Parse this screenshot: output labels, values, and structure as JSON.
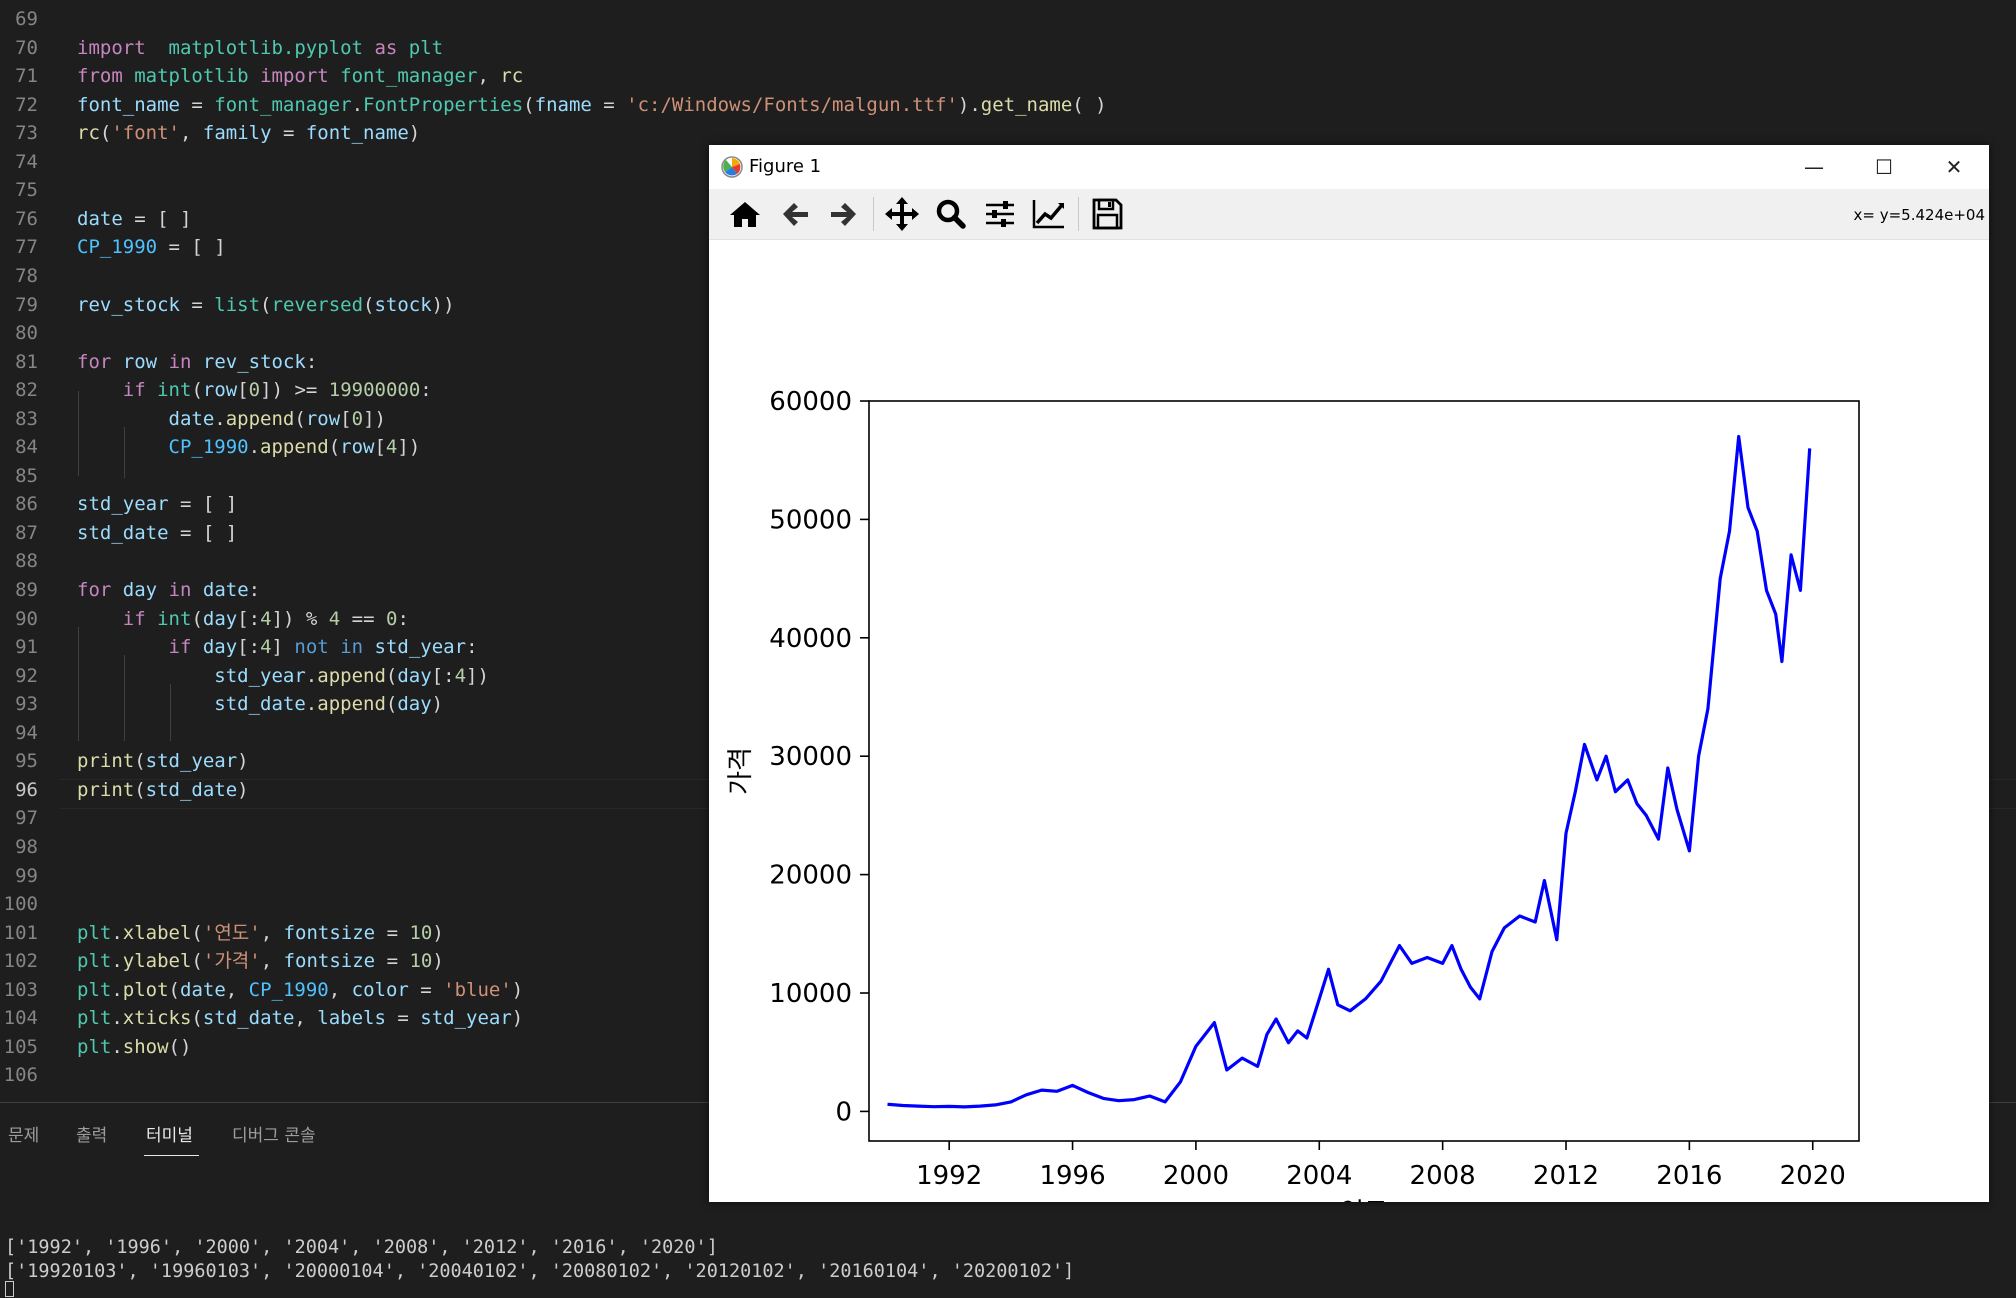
{
  "editor": {
    "active_line": "96",
    "lines": [
      {
        "n": "69",
        "tokens": []
      },
      {
        "n": "70",
        "tokens": [
          [
            "kw",
            "import"
          ],
          [
            "",
            "  "
          ],
          [
            "cls",
            "matplotlib.pyplot"
          ],
          [
            "",
            " "
          ],
          [
            "kw",
            "as"
          ],
          [
            "",
            " "
          ],
          [
            "cls",
            "plt"
          ]
        ]
      },
      {
        "n": "71",
        "tokens": [
          [
            "kw",
            "from"
          ],
          [
            "",
            " "
          ],
          [
            "cls",
            "matplotlib"
          ],
          [
            "",
            " "
          ],
          [
            "kw",
            "import"
          ],
          [
            "",
            " "
          ],
          [
            "cls",
            "font_manager"
          ],
          [
            "",
            ", "
          ],
          [
            "fn",
            "rc"
          ]
        ]
      },
      {
        "n": "72",
        "tokens": [
          [
            "var",
            "font_name"
          ],
          [
            "",
            " = "
          ],
          [
            "cls",
            "font_manager"
          ],
          [
            "",
            "."
          ],
          [
            "cls",
            "FontProperties"
          ],
          [
            "",
            "("
          ],
          [
            "var",
            "fname"
          ],
          [
            "",
            " = "
          ],
          [
            "str",
            "'c:/Windows/Fonts/malgun.ttf'"
          ],
          [
            "",
            ")."
          ],
          [
            "fn",
            "get_name"
          ],
          [
            "",
            "( )"
          ]
        ]
      },
      {
        "n": "73",
        "tokens": [
          [
            "fn",
            "rc"
          ],
          [
            "",
            "("
          ],
          [
            "str",
            "'font'"
          ],
          [
            "",
            ", "
          ],
          [
            "var",
            "family"
          ],
          [
            "",
            " = "
          ],
          [
            "var",
            "font_name"
          ],
          [
            "",
            ")"
          ]
        ]
      },
      {
        "n": "74",
        "tokens": []
      },
      {
        "n": "75",
        "tokens": []
      },
      {
        "n": "76",
        "tokens": [
          [
            "var",
            "date"
          ],
          [
            "",
            " = [ ]"
          ]
        ]
      },
      {
        "n": "77",
        "tokens": [
          [
            "cst",
            "CP_1990"
          ],
          [
            "",
            " = [ ]"
          ]
        ]
      },
      {
        "n": "78",
        "tokens": []
      },
      {
        "n": "79",
        "tokens": [
          [
            "var",
            "rev_stock"
          ],
          [
            "",
            " = "
          ],
          [
            "cls",
            "list"
          ],
          [
            "",
            "("
          ],
          [
            "cls",
            "reversed"
          ],
          [
            "",
            "("
          ],
          [
            "var",
            "stock"
          ],
          [
            "",
            "))"
          ]
        ]
      },
      {
        "n": "80",
        "tokens": []
      },
      {
        "n": "81",
        "tokens": [
          [
            "kw",
            "for"
          ],
          [
            "",
            " "
          ],
          [
            "var",
            "row"
          ],
          [
            "",
            " "
          ],
          [
            "kw",
            "in"
          ],
          [
            "",
            " "
          ],
          [
            "var",
            "rev_stock"
          ],
          [
            "",
            ":"
          ]
        ]
      },
      {
        "n": "82",
        "tokens": [
          [
            "",
            "    "
          ],
          [
            "kw",
            "if"
          ],
          [
            "",
            " "
          ],
          [
            "cls",
            "int"
          ],
          [
            "",
            "("
          ],
          [
            "var",
            "row"
          ],
          [
            "",
            "["
          ],
          [
            "num",
            "0"
          ],
          [
            "",
            "]) >= "
          ],
          [
            "num",
            "19900000"
          ],
          [
            "",
            ":"
          ]
        ]
      },
      {
        "n": "83",
        "tokens": [
          [
            "",
            "        "
          ],
          [
            "var",
            "date"
          ],
          [
            "",
            "."
          ],
          [
            "fn",
            "append"
          ],
          [
            "",
            "("
          ],
          [
            "var",
            "row"
          ],
          [
            "",
            "["
          ],
          [
            "num",
            "0"
          ],
          [
            "",
            "])"
          ]
        ]
      },
      {
        "n": "84",
        "tokens": [
          [
            "",
            "        "
          ],
          [
            "cst",
            "CP_1990"
          ],
          [
            "",
            "."
          ],
          [
            "fn",
            "append"
          ],
          [
            "",
            "("
          ],
          [
            "var",
            "row"
          ],
          [
            "",
            "["
          ],
          [
            "num",
            "4"
          ],
          [
            "",
            "])"
          ]
        ]
      },
      {
        "n": "85",
        "tokens": []
      },
      {
        "n": "86",
        "tokens": [
          [
            "var",
            "std_year"
          ],
          [
            "",
            " = [ ]"
          ]
        ]
      },
      {
        "n": "87",
        "tokens": [
          [
            "var",
            "std_date"
          ],
          [
            "",
            " = [ ]"
          ]
        ]
      },
      {
        "n": "88",
        "tokens": []
      },
      {
        "n": "89",
        "tokens": [
          [
            "kw",
            "for"
          ],
          [
            "",
            " "
          ],
          [
            "var",
            "day"
          ],
          [
            "",
            " "
          ],
          [
            "kw",
            "in"
          ],
          [
            "",
            " "
          ],
          [
            "var",
            "date"
          ],
          [
            "",
            ":"
          ]
        ]
      },
      {
        "n": "90",
        "tokens": [
          [
            "",
            "    "
          ],
          [
            "kw",
            "if"
          ],
          [
            "",
            " "
          ],
          [
            "cls",
            "int"
          ],
          [
            "",
            "("
          ],
          [
            "var",
            "day"
          ],
          [
            "",
            "[:"
          ],
          [
            "num",
            "4"
          ],
          [
            "",
            "]) % "
          ],
          [
            "num",
            "4"
          ],
          [
            "",
            " == "
          ],
          [
            "num",
            "0"
          ],
          [
            "",
            ":"
          ]
        ]
      },
      {
        "n": "91",
        "tokens": [
          [
            "",
            "        "
          ],
          [
            "kw",
            "if"
          ],
          [
            "",
            " "
          ],
          [
            "var",
            "day"
          ],
          [
            "",
            "[:"
          ],
          [
            "num",
            "4"
          ],
          [
            "",
            "] "
          ],
          [
            "bl",
            "not"
          ],
          [
            "",
            " "
          ],
          [
            "bl",
            "in"
          ],
          [
            "",
            " "
          ],
          [
            "var",
            "std_year"
          ],
          [
            "",
            ":"
          ]
        ]
      },
      {
        "n": "92",
        "tokens": [
          [
            "",
            "            "
          ],
          [
            "var",
            "std_year"
          ],
          [
            "",
            "."
          ],
          [
            "fn",
            "append"
          ],
          [
            "",
            "("
          ],
          [
            "var",
            "day"
          ],
          [
            "",
            "[:"
          ],
          [
            "num",
            "4"
          ],
          [
            "",
            "])"
          ]
        ]
      },
      {
        "n": "93",
        "tokens": [
          [
            "",
            "            "
          ],
          [
            "var",
            "std_date"
          ],
          [
            "",
            "."
          ],
          [
            "fn",
            "append"
          ],
          [
            "",
            "("
          ],
          [
            "var",
            "day"
          ],
          [
            "",
            ")"
          ]
        ]
      },
      {
        "n": "94",
        "tokens": []
      },
      {
        "n": "95",
        "tokens": [
          [
            "fn",
            "print"
          ],
          [
            "",
            "("
          ],
          [
            "var",
            "std_year"
          ],
          [
            "",
            ")"
          ]
        ]
      },
      {
        "n": "96",
        "tokens": [
          [
            "fn",
            "print"
          ],
          [
            "",
            "("
          ],
          [
            "var",
            "std_date"
          ],
          [
            "",
            ")"
          ]
        ]
      },
      {
        "n": "97",
        "tokens": []
      },
      {
        "n": "98",
        "tokens": []
      },
      {
        "n": "99",
        "tokens": []
      },
      {
        "n": "100",
        "tokens": []
      },
      {
        "n": "101",
        "tokens": [
          [
            "cls",
            "plt"
          ],
          [
            "",
            "."
          ],
          [
            "fn",
            "xlabel"
          ],
          [
            "",
            "("
          ],
          [
            "str",
            "'연도'"
          ],
          [
            "",
            ", "
          ],
          [
            "var",
            "fontsize"
          ],
          [
            "",
            " = "
          ],
          [
            "num",
            "10"
          ],
          [
            "",
            ")"
          ]
        ]
      },
      {
        "n": "102",
        "tokens": [
          [
            "cls",
            "plt"
          ],
          [
            "",
            "."
          ],
          [
            "fn",
            "ylabel"
          ],
          [
            "",
            "("
          ],
          [
            "str",
            "'가격'"
          ],
          [
            "",
            ", "
          ],
          [
            "var",
            "fontsize"
          ],
          [
            "",
            " = "
          ],
          [
            "num",
            "10"
          ],
          [
            "",
            ")"
          ]
        ]
      },
      {
        "n": "103",
        "tokens": [
          [
            "cls",
            "plt"
          ],
          [
            "",
            "."
          ],
          [
            "fn",
            "plot"
          ],
          [
            "",
            "("
          ],
          [
            "var",
            "date"
          ],
          [
            "",
            ", "
          ],
          [
            "cst",
            "CP_1990"
          ],
          [
            "",
            ", "
          ],
          [
            "var",
            "color"
          ],
          [
            "",
            " = "
          ],
          [
            "str",
            "'blue'"
          ],
          [
            "",
            ")"
          ]
        ]
      },
      {
        "n": "104",
        "tokens": [
          [
            "cls",
            "plt"
          ],
          [
            "",
            "."
          ],
          [
            "fn",
            "xticks"
          ],
          [
            "",
            "("
          ],
          [
            "var",
            "std_date"
          ],
          [
            "",
            ", "
          ],
          [
            "var",
            "labels"
          ],
          [
            "",
            " = "
          ],
          [
            "var",
            "std_year"
          ],
          [
            "",
            ")"
          ]
        ]
      },
      {
        "n": "105",
        "tokens": [
          [
            "cls",
            "plt"
          ],
          [
            "",
            "."
          ],
          [
            "fn",
            "show"
          ],
          [
            "",
            "()"
          ]
        ]
      },
      {
        "n": "106",
        "tokens": []
      }
    ],
    "colors": {
      "kw": "#c586c0",
      "blue": "#569cd6",
      "fn": "#dcdcaa",
      "var": "#9cdcfe",
      "const": "#4fc1ff",
      "str": "#ce9178",
      "num": "#b5cea8",
      "cls": "#4ec9b0"
    }
  },
  "panel": {
    "tabs": [
      {
        "label": "문제",
        "active": false
      },
      {
        "label": "출력",
        "active": false
      },
      {
        "label": "터미널",
        "active": true
      },
      {
        "label": "디버그 콘솔",
        "active": false
      }
    ],
    "terminal_lines": [
      "['1992', '1996', '2000', '2004', '2008', '2012', '2016', '2020']",
      "['19920103', '19960103', '20000104', '20040102', '20080102', '20120102', '20160104', '20200102']"
    ]
  },
  "figure": {
    "title": "Figure 1",
    "window_buttons": {
      "minimize": "—",
      "maximize": "☐",
      "close": "✕"
    },
    "toolbar_icons": [
      "home-icon",
      "back-arrow-icon",
      "forward-arrow-icon",
      "pan-icon",
      "zoom-icon",
      "subplots-icon",
      "axes-edit-icon",
      "save-icon"
    ],
    "coords_text": "x= y=5.424e+04"
  },
  "chart_data": {
    "type": "line",
    "title": "",
    "xlabel": "연도",
    "ylabel": "가격",
    "color": "#0000ff",
    "xlim": [
      1989.4,
      2021.5
    ],
    "ylim": [
      -2500,
      60000
    ],
    "x_ticks": [
      1992,
      1996,
      2000,
      2004,
      2008,
      2012,
      2016,
      2020
    ],
    "x_tick_labels": [
      "1992",
      "1996",
      "2000",
      "2004",
      "2008",
      "2012",
      "2016",
      "2020"
    ],
    "y_ticks": [
      0,
      10000,
      20000,
      30000,
      40000,
      50000,
      60000
    ],
    "y_tick_labels": [
      "0",
      "10000",
      "20000",
      "30000",
      "40000",
      "50000",
      "60000"
    ],
    "grid": false,
    "series": [
      {
        "x": [
          1990.0,
          1990.5,
          1991.0,
          1991.5,
          1992.0,
          1992.5,
          1993.0,
          1993.5,
          1994.0,
          1994.5,
          1995.0,
          1995.5,
          1996.0,
          1996.5,
          1997.0,
          1997.5,
          1998.0,
          1998.5,
          1999.0,
          1999.5,
          2000.0,
          2000.3,
          2000.6,
          2001.0,
          2001.5,
          2002.0,
          2002.3,
          2002.6,
          2003.0,
          2003.3,
          2003.6,
          2004.0,
          2004.3,
          2004.6,
          2005.0,
          2005.5,
          2006.0,
          2006.3,
          2006.6,
          2007.0,
          2007.5,
          2008.0,
          2008.3,
          2008.6,
          2008.9,
          2009.2,
          2009.6,
          2010.0,
          2010.5,
          2011.0,
          2011.3,
          2011.7,
          2012.0,
          2012.3,
          2012.6,
          2013.0,
          2013.3,
          2013.6,
          2014.0,
          2014.3,
          2014.6,
          2015.0,
          2015.3,
          2015.6,
          2016.0,
          2016.3,
          2016.6,
          2017.0,
          2017.3,
          2017.6,
          2017.9,
          2018.2,
          2018.5,
          2018.8,
          2019.0,
          2019.3,
          2019.6,
          2019.9
        ],
        "y": [
          600,
          500,
          450,
          400,
          420,
          380,
          450,
          550,
          800,
          1400,
          1800,
          1700,
          2200,
          1600,
          1100,
          900,
          1000,
          1300,
          800,
          2500,
          5500,
          6500,
          7500,
          3500,
          4500,
          3800,
          6500,
          7800,
          5800,
          6800,
          6200,
          9500,
          12000,
          9000,
          8500,
          9500,
          11000,
          12500,
          14000,
          12500,
          13000,
          12500,
          14000,
          12000,
          10500,
          9500,
          13500,
          15500,
          16500,
          16000,
          19500,
          14500,
          23500,
          27000,
          31000,
          28000,
          30000,
          27000,
          28000,
          26000,
          25000,
          23000,
          29000,
          25500,
          22000,
          30000,
          34000,
          45000,
          49000,
          57000,
          51000,
          49000,
          44000,
          42000,
          38000,
          47000,
          44000,
          56000
        ]
      }
    ]
  }
}
